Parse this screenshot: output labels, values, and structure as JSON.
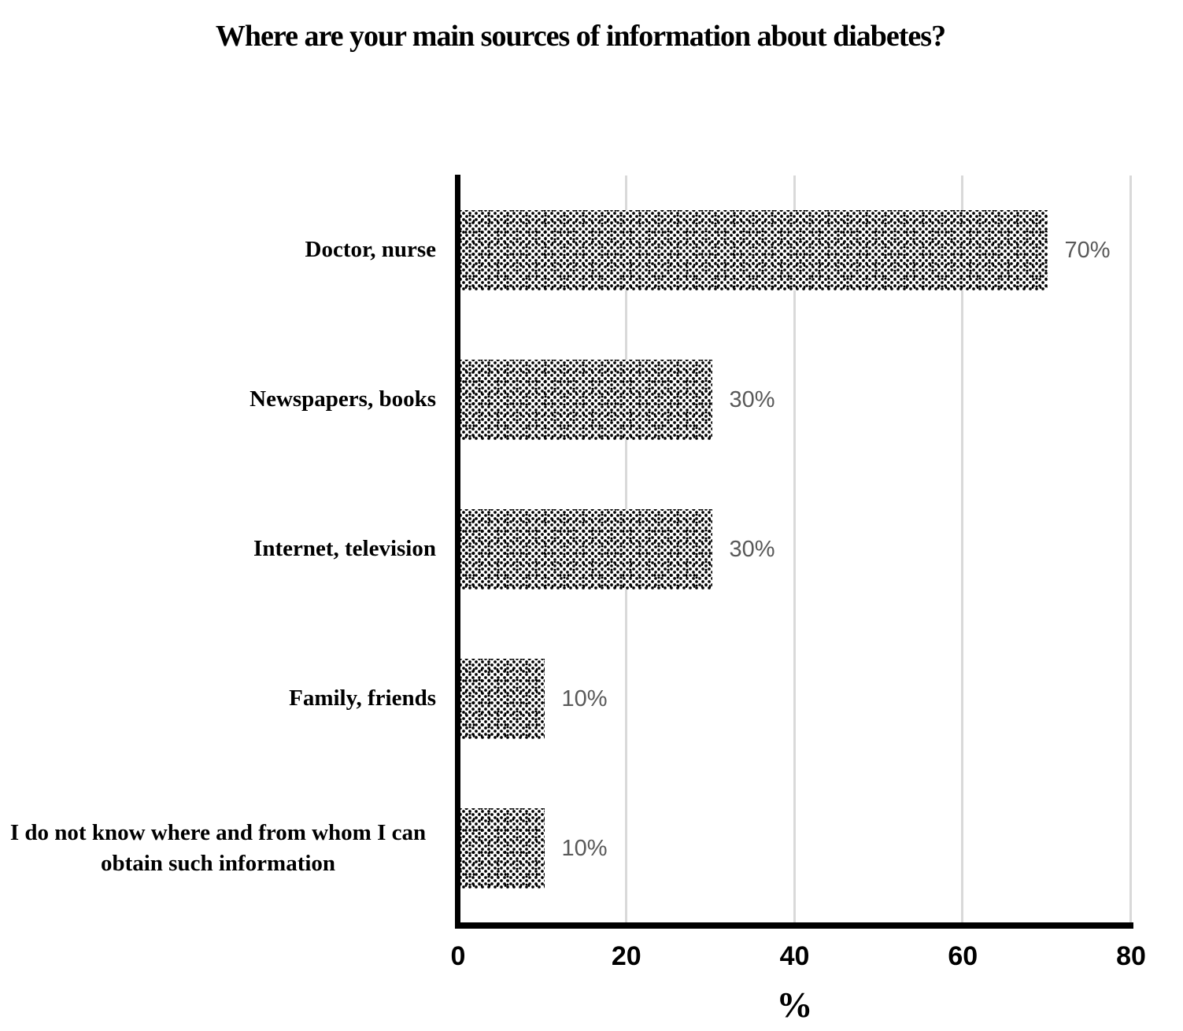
{
  "title": "Where are your main sources of information about diabetes?",
  "chart_data": {
    "type": "bar",
    "orientation": "horizontal",
    "title": "Where are your main sources of information about diabetes?",
    "categories": [
      "Doctor, nurse",
      "Newspapers, books",
      "Internet, television",
      "Family, friends",
      "I do not know where and from whom I can obtain such information"
    ],
    "values": [
      70,
      30,
      30,
      10,
      10
    ],
    "data_labels": [
      "70%",
      "30%",
      "30%",
      "10%",
      "10%"
    ],
    "xlabel": "%",
    "ylabel": "",
    "xlim": [
      0,
      80
    ],
    "x_ticks": [
      0,
      20,
      40,
      60,
      80
    ],
    "grid": "vertical-major-only",
    "legend": "none",
    "bar_fill": "black dotted pattern on white",
    "colors": {
      "bar_dot": "#000000",
      "bar_background": "#ffffff",
      "data_label_text": "#595959",
      "gridline": "#d9d9d9",
      "axis_line": "#000000",
      "text": "#000000"
    }
  }
}
